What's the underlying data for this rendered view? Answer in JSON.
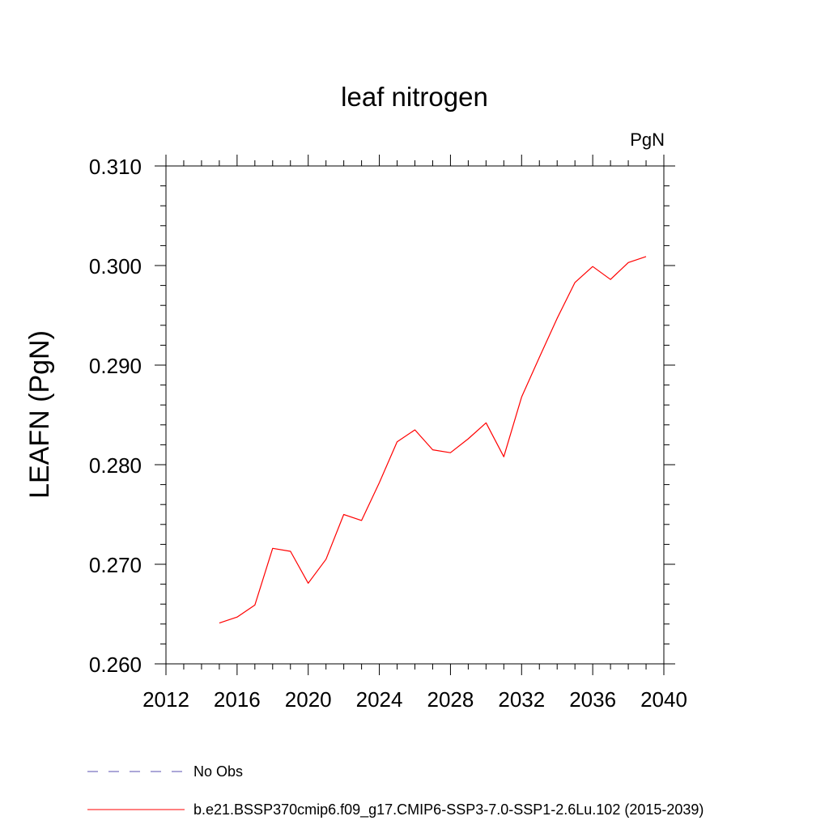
{
  "chart_data": {
    "type": "line",
    "title": "leaf nitrogen",
    "units": "PgN",
    "ylabel": "LEAFN  (PgN)",
    "xlabel": "",
    "xlim": [
      2012,
      2040
    ],
    "ylim": [
      0.26,
      0.31
    ],
    "x_ticks": [
      "2012",
      "2016",
      "2020",
      "2024",
      "2028",
      "2032",
      "2036",
      "2040"
    ],
    "y_ticks": [
      "0.260",
      "0.270",
      "0.280",
      "0.290",
      "0.300",
      "0.310"
    ],
    "grid": false,
    "series": [
      {
        "name": "b.e21.BSSP370cmip6.f09_g17.CMIP6-SSP3-7.0-SSP1-2.6Lu.102 (2015-2039)",
        "color": "#ff0000",
        "x": [
          2015,
          2016,
          2017,
          2018,
          2019,
          2020,
          2021,
          2022,
          2023,
          2024,
          2025,
          2026,
          2027,
          2028,
          2029,
          2030,
          2031,
          2032,
          2033,
          2034,
          2035,
          2036,
          2037,
          2038,
          2039
        ],
        "y": [
          0.2641,
          0.2647,
          0.2659,
          0.2716,
          0.2713,
          0.2681,
          0.2705,
          0.275,
          0.2744,
          0.2782,
          0.2823,
          0.2835,
          0.2815,
          0.2812,
          0.2826,
          0.2842,
          0.2808,
          0.2868,
          0.2908,
          0.2947,
          0.2983,
          0.2999,
          0.2986,
          0.3003,
          0.3009
        ]
      }
    ],
    "legend": [
      {
        "label": "No Obs",
        "color": "#5a4fb0",
        "style": "dashed"
      },
      {
        "label": "b.e21.BSSP370cmip6.f09_g17.CMIP6-SSP3-7.0-SSP1-2.6Lu.102 (2015-2039)",
        "color": "#ff0000",
        "style": "solid"
      }
    ]
  }
}
